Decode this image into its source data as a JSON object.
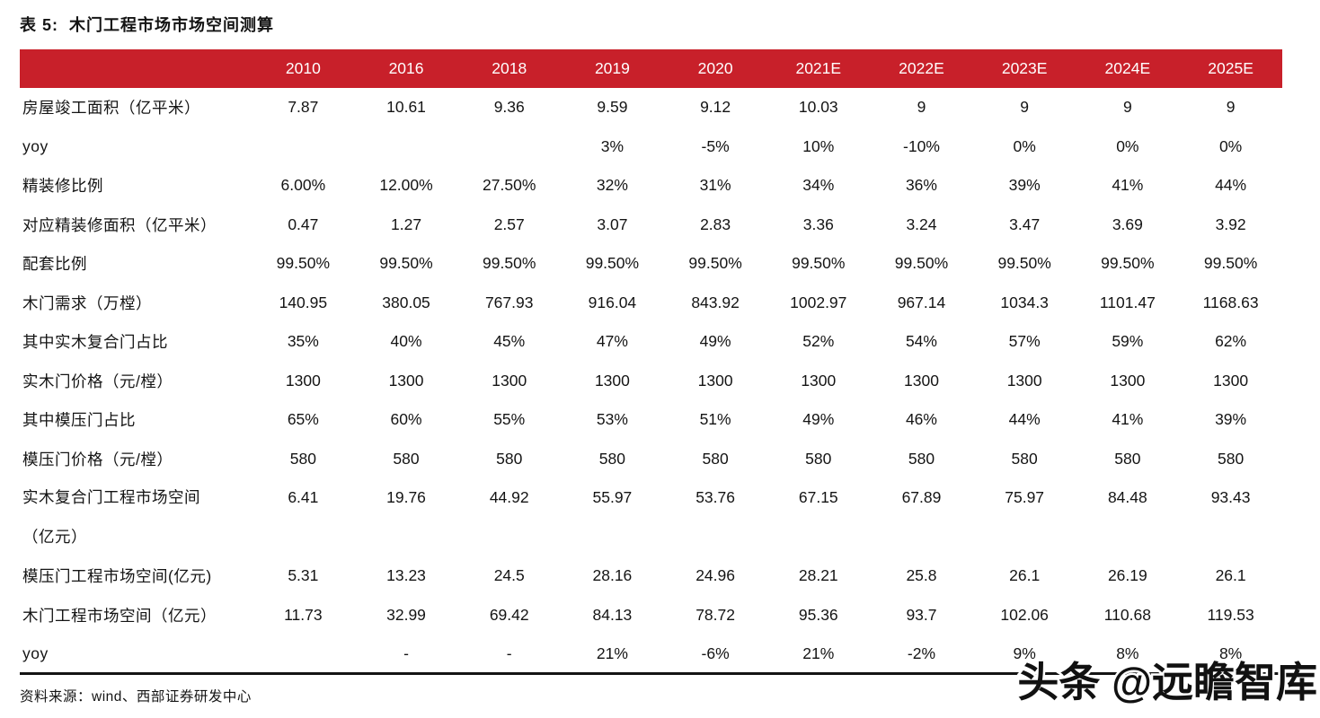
{
  "title": "表 5:  木门工程市场市场空间测算",
  "colors": {
    "header_bg": "#C8202A",
    "header_text": "#FFFFFF",
    "rule": "#141414"
  },
  "table": {
    "columns": [
      "2010",
      "2016",
      "2018",
      "2019",
      "2020",
      "2021E",
      "2022E",
      "2023E",
      "2024E",
      "2025E"
    ],
    "rows": [
      {
        "label": "房屋竣工面积（亿平米）",
        "values": [
          "7.87",
          "10.61",
          "9.36",
          "9.59",
          "9.12",
          "10.03",
          "9",
          "9",
          "9",
          "9"
        ]
      },
      {
        "label": "yoy",
        "values": [
          "",
          "",
          "",
          "3%",
          "-5%",
          "10%",
          "-10%",
          "0%",
          "0%",
          "0%"
        ]
      },
      {
        "label": "精装修比例",
        "values": [
          "6.00%",
          "12.00%",
          "27.50%",
          "32%",
          "31%",
          "34%",
          "36%",
          "39%",
          "41%",
          "44%"
        ]
      },
      {
        "label": "对应精装修面积（亿平米）",
        "values": [
          "0.47",
          "1.27",
          "2.57",
          "3.07",
          "2.83",
          "3.36",
          "3.24",
          "3.47",
          "3.69",
          "3.92"
        ]
      },
      {
        "label": "配套比例",
        "values": [
          "99.50%",
          "99.50%",
          "99.50%",
          "99.50%",
          "99.50%",
          "99.50%",
          "99.50%",
          "99.50%",
          "99.50%",
          "99.50%"
        ]
      },
      {
        "label": "木门需求（万樘）",
        "values": [
          "140.95",
          "380.05",
          "767.93",
          "916.04",
          "843.92",
          "1002.97",
          "967.14",
          "1034.3",
          "1101.47",
          "1168.63"
        ]
      },
      {
        "label": "其中实木复合门占比",
        "values": [
          "35%",
          "40%",
          "45%",
          "47%",
          "49%",
          "52%",
          "54%",
          "57%",
          "59%",
          "62%"
        ]
      },
      {
        "label": "实木门价格（元/樘）",
        "values": [
          "1300",
          "1300",
          "1300",
          "1300",
          "1300",
          "1300",
          "1300",
          "1300",
          "1300",
          "1300"
        ]
      },
      {
        "label": "其中模压门占比",
        "values": [
          "65%",
          "60%",
          "55%",
          "53%",
          "51%",
          "49%",
          "46%",
          "44%",
          "41%",
          "39%"
        ]
      },
      {
        "label": "模压门价格（元/樘）",
        "values": [
          "580",
          "580",
          "580",
          "580",
          "580",
          "580",
          "580",
          "580",
          "580",
          "580"
        ]
      },
      {
        "label": "实木复合门工程市场空间",
        "label2": "（亿元）",
        "values": [
          "6.41",
          "19.76",
          "44.92",
          "55.97",
          "53.76",
          "67.15",
          "67.89",
          "75.97",
          "84.48",
          "93.43"
        ]
      },
      {
        "label": "模压门工程市场空间(亿元)",
        "values": [
          "5.31",
          "13.23",
          "24.5",
          "28.16",
          "24.96",
          "28.21",
          "25.8",
          "26.1",
          "26.19",
          "26.1"
        ]
      },
      {
        "label": "木门工程市场空间（亿元）",
        "values": [
          "11.73",
          "32.99",
          "69.42",
          "84.13",
          "78.72",
          "95.36",
          "93.7",
          "102.06",
          "110.68",
          "119.53"
        ]
      },
      {
        "label": "yoy",
        "values": [
          "",
          "-",
          "-",
          "21%",
          "-6%",
          "21%",
          "-2%",
          "9%",
          "8%",
          "8%"
        ]
      }
    ]
  },
  "footer": {
    "source": "资料来源：wind、西部证券研发中心"
  },
  "watermark": "头条 @远瞻智库"
}
